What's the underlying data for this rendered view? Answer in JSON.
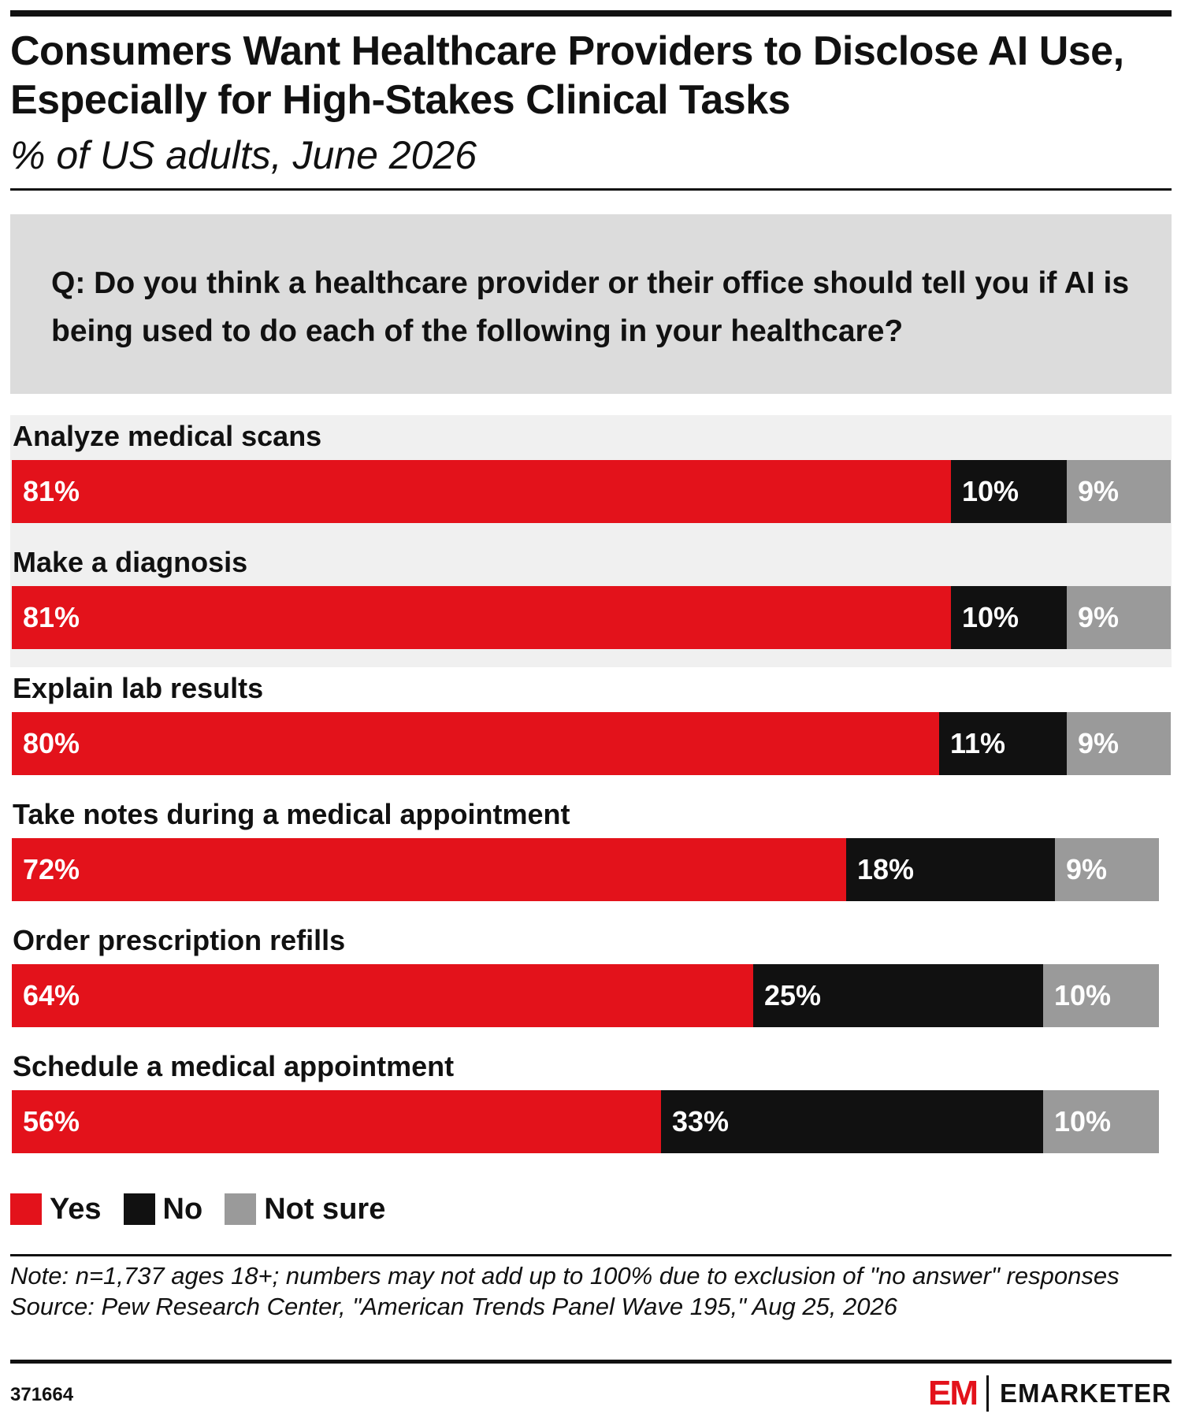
{
  "header": {
    "title": "Consumers Want Healthcare Providers to Disclose AI Use, Especially for High-Stakes Clinical Tasks",
    "subtitle": "% of US adults, June 2026",
    "question": "Q: Do you think a healthcare provider or their office should tell you if AI is being used to do each of the following in your healthcare?"
  },
  "colors": {
    "yes": "#e3121b",
    "no": "#111111",
    "not_sure": "#9a9a9a",
    "question_bg": "#dcdcdc",
    "band_bg": "#f0f0f0"
  },
  "chart_data": {
    "type": "bar",
    "orientation": "horizontal",
    "stacked": true,
    "unit": "%",
    "categories": [
      "Analyze medical scans",
      "Make a diagnosis",
      "Explain lab results",
      "Take notes during a medical appointment",
      "Order prescription refills",
      "Schedule a medical appointment"
    ],
    "series": [
      {
        "name": "Yes",
        "values": [
          81,
          81,
          80,
          72,
          64,
          56
        ]
      },
      {
        "name": "No",
        "values": [
          10,
          10,
          11,
          18,
          25,
          33
        ]
      },
      {
        "name": "Not sure",
        "values": [
          9,
          9,
          9,
          9,
          10,
          10
        ]
      }
    ],
    "value_labels": [
      [
        "81%",
        "10%",
        "9%"
      ],
      [
        "81%",
        "10%",
        "9%"
      ],
      [
        "80%",
        "11%",
        "9%"
      ],
      [
        "72%",
        "18%",
        "9%"
      ],
      [
        "64%",
        "25%",
        "10%"
      ],
      [
        "56%",
        "33%",
        "10%"
      ]
    ],
    "legend": [
      "Yes",
      "No",
      "Not sure"
    ],
    "legend_position": "bottom-left"
  },
  "footer": {
    "note": "Note: n=1,737 ages 18+; numbers may not add up to 100% due to exclusion of \"no answer\" responses",
    "source": "Source: Pew Research Center, \"American Trends Panel Wave 195,\" Aug 25, 2026",
    "chart_id": "371664",
    "brand_mark": "EM",
    "brand_name": "EMARKETER"
  }
}
